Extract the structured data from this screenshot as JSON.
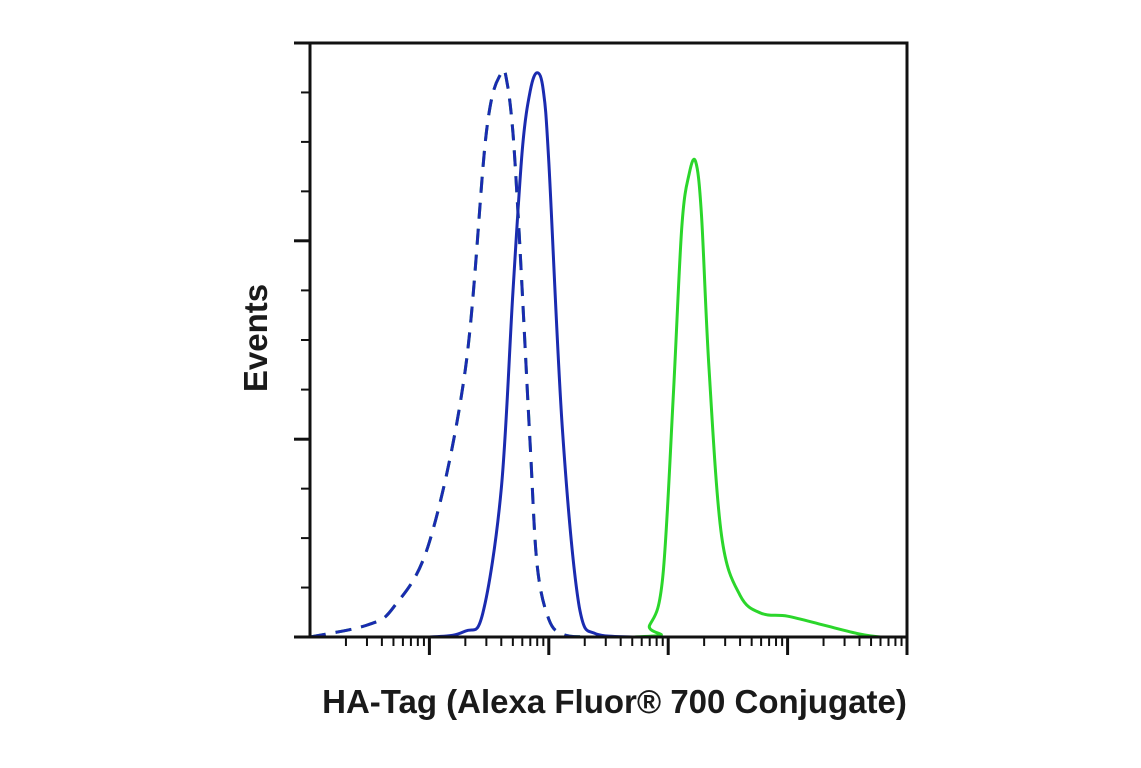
{
  "chart_data": {
    "type": "line",
    "title": "",
    "xlabel": "HA-Tag (Alexa Fluor® 700 Conjugate)",
    "ylabel": "Events",
    "x_scale": "log",
    "xlim": [
      1,
      100000
    ],
    "ylim": [
      0,
      100
    ],
    "x_major_ticks": [
      10,
      100,
      1000,
      10000,
      100000
    ],
    "y_major_ticks": [
      0,
      33.3,
      66.7,
      100
    ],
    "grid": false,
    "legend": "none",
    "series": [
      {
        "color": "#1a2bb0",
        "dashed": false,
        "x": [
          1,
          10,
          20,
          28,
          40,
          50,
          60,
          70,
          80,
          90,
          100,
          130,
          180,
          250,
          500,
          1000,
          5000,
          100000
        ],
        "y": [
          0,
          0,
          1,
          4,
          25,
          58,
          82,
          92,
          95,
          92,
          80,
          35,
          5,
          0.5,
          0,
          0,
          0,
          0
        ]
      },
      {
        "color": "#2bd62b",
        "dashed": true,
        "x": [
          1,
          3,
          5,
          10,
          20,
          30,
          40,
          45,
          50,
          55,
          60,
          70,
          80,
          100,
          130,
          200,
          400,
          100000
        ],
        "y": [
          0,
          2,
          5,
          16,
          45,
          85,
          95,
          93,
          85,
          72,
          58,
          32,
          12,
          3,
          0.5,
          0,
          0,
          0
        ]
      },
      {
        "color": "#1a2bb0",
        "dashed": true,
        "x": [
          1,
          3,
          5,
          10,
          20,
          30,
          40,
          45,
          50,
          55,
          60,
          70,
          80,
          100,
          130,
          200,
          400,
          100000
        ],
        "y": [
          0,
          2,
          5,
          16,
          45,
          85,
          95,
          93,
          85,
          72,
          58,
          32,
          12,
          3,
          0.5,
          0,
          0,
          0
        ]
      },
      {
        "color": "#2bd62b",
        "dashed": false,
        "x": [
          1,
          500,
          700,
          900,
          1100,
          1300,
          1500,
          1700,
          1900,
          2200,
          2800,
          4000,
          6000,
          10000,
          20000,
          40000,
          60000,
          100000
        ],
        "y": [
          0,
          0,
          2,
          10,
          40,
          69,
          78,
          80,
          71,
          45,
          17,
          7,
          4,
          3.5,
          2,
          0.5,
          0,
          0
        ]
      }
    ]
  }
}
